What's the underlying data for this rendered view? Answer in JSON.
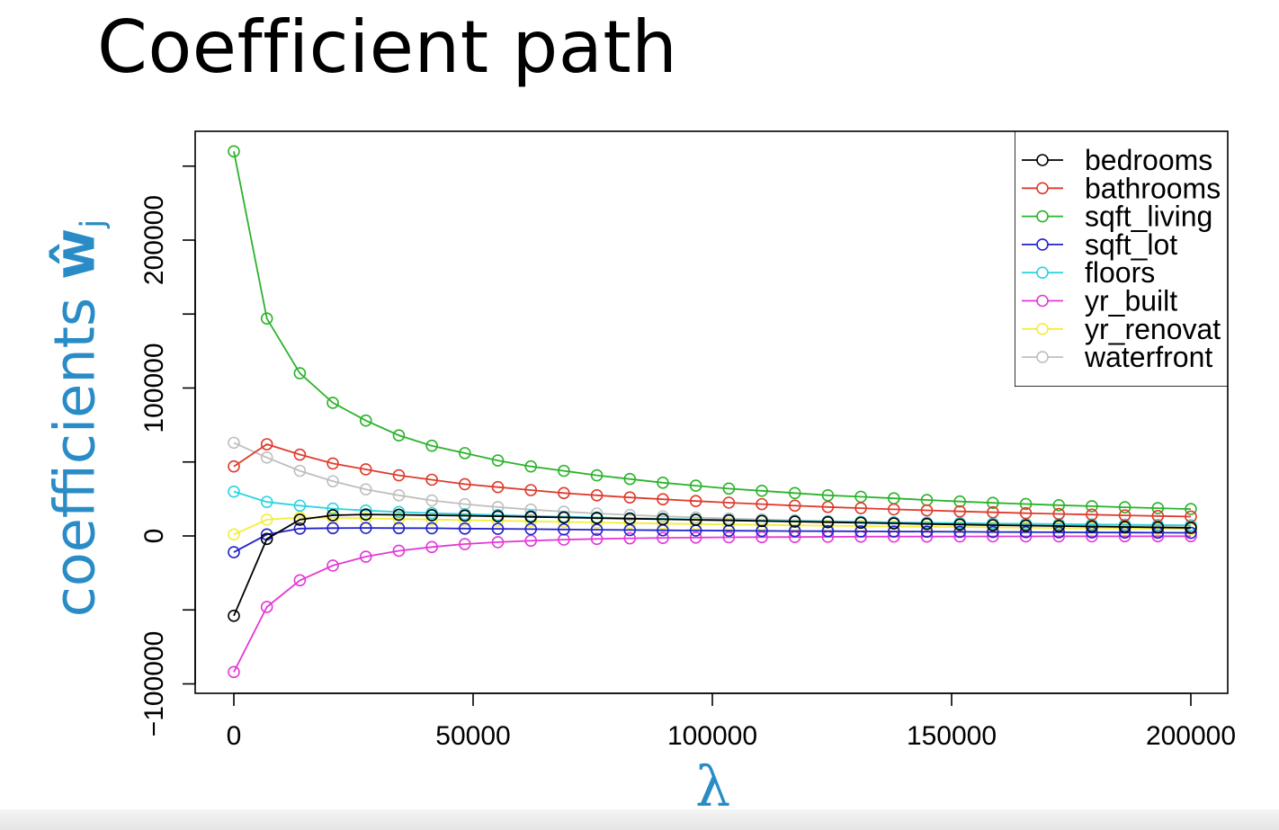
{
  "slide": {
    "title": "Coefficient path",
    "ylabel_prefix": "coefficients ",
    "ylabel_symbol": "ŵ",
    "ylabel_sub": "j",
    "xlabel": "λ",
    "accent_color": "#2a8cc6"
  },
  "chart_data": {
    "type": "line",
    "title": "",
    "xlabel": "λ",
    "ylabel": "coefficients ŵj",
    "xlim": [
      -8000,
      208000
    ],
    "ylim": [
      -107000,
      275000
    ],
    "x_ticks": [
      0,
      50000,
      100000,
      150000,
      200000
    ],
    "x_tick_labels": [
      "0",
      "50000",
      "100000",
      "150000",
      "200000"
    ],
    "y_ticks": [
      -100000,
      0,
      100000,
      200000
    ],
    "y_tick_labels": [
      "−100000",
      "0",
      "100000",
      "200000"
    ],
    "grid": false,
    "legend_position": "top-right",
    "x": [
      0,
      6897,
      13793,
      20690,
      27586,
      34483,
      41379,
      48276,
      55172,
      62069,
      68966,
      75862,
      82759,
      89655,
      96552,
      103448,
      110345,
      117241,
      124138,
      131034,
      137931,
      144828,
      151724,
      158621,
      165517,
      172414,
      179310,
      186207,
      193103,
      200000
    ],
    "series": [
      {
        "name": "bedrooms",
        "color": "#000000",
        "values": [
          -54000,
          -2000,
          11000,
          14000,
          14500,
          14300,
          14000,
          13700,
          13300,
          12900,
          12500,
          12100,
          11700,
          11300,
          10900,
          10500,
          10100,
          9700,
          9300,
          8900,
          8500,
          8100,
          7700,
          7300,
          7000,
          6700,
          6400,
          6100,
          5800,
          5500
        ]
      },
      {
        "name": "bathrooms",
        "color": "#df3b2c",
        "values": [
          47000,
          62000,
          55000,
          49000,
          45000,
          41000,
          38000,
          35000,
          33000,
          31000,
          29000,
          27500,
          26000,
          24800,
          23600,
          22500,
          21500,
          20500,
          19600,
          18800,
          18000,
          17300,
          16600,
          16000,
          15400,
          14900,
          14400,
          13900,
          13500,
          13100
        ]
      },
      {
        "name": "sqft_living",
        "color": "#2bb32b",
        "values": [
          260000,
          147000,
          110000,
          90000,
          78000,
          68000,
          61000,
          56000,
          51000,
          47000,
          44000,
          41000,
          38500,
          36000,
          34000,
          32000,
          30500,
          29000,
          27500,
          26500,
          25400,
          24300,
          23300,
          22400,
          21600,
          20800,
          20100,
          19400,
          18800,
          18200
        ]
      },
      {
        "name": "sqft_lot",
        "color": "#2222cc",
        "values": [
          -11000,
          1000,
          5000,
          5300,
          5400,
          5300,
          5200,
          5000,
          4800,
          4600,
          4400,
          4200,
          4000,
          3800,
          3700,
          3500,
          3400,
          3300,
          3200,
          3100,
          3000,
          2900,
          2800,
          2700,
          2600,
          2500,
          2400,
          2300,
          2200,
          2100
        ]
      },
      {
        "name": "floors",
        "color": "#2ed3e0",
        "values": [
          30000,
          23000,
          20500,
          18500,
          17200,
          16200,
          15400,
          14700,
          14100,
          13500,
          13000,
          12500,
          12000,
          11600,
          11200,
          10800,
          10400,
          10100,
          9800,
          9500,
          9200,
          8900,
          8700,
          8400,
          8200,
          8000,
          7800,
          7600,
          7400,
          7200
        ]
      },
      {
        "name": "yr_built",
        "color": "#e23ad6",
        "values": [
          -92000,
          -48000,
          -30000,
          -20000,
          -14000,
          -10000,
          -7500,
          -5500,
          -4200,
          -3200,
          -2500,
          -2000,
          -1600,
          -1300,
          -1100,
          -900,
          -800,
          -700,
          -600,
          -500,
          -450,
          -400,
          -350,
          -300,
          -280,
          -260,
          -240,
          -220,
          -200,
          -180
        ]
      },
      {
        "name": "yr_renovat",
        "color": "#f2ee3a",
        "values": [
          1000,
          11000,
          12500,
          12300,
          11900,
          11500,
          11100,
          10700,
          10300,
          9900,
          9500,
          9100,
          8700,
          8400,
          8100,
          7800,
          7500,
          7200,
          6900,
          6700,
          6400,
          6200,
          6000,
          5800,
          5600,
          5400,
          5200,
          5000,
          4900,
          4700
        ]
      },
      {
        "name": "waterfront",
        "color": "#bfbfbf",
        "values": [
          63000,
          53000,
          44000,
          37000,
          31500,
          27500,
          24000,
          21500,
          19500,
          17800,
          16400,
          15200,
          14200,
          13300,
          12500,
          11800,
          11200,
          10600,
          10100,
          9600,
          9200,
          8800,
          8400,
          8100,
          7800,
          7500,
          7200,
          7000,
          6800,
          6600
        ]
      }
    ]
  }
}
